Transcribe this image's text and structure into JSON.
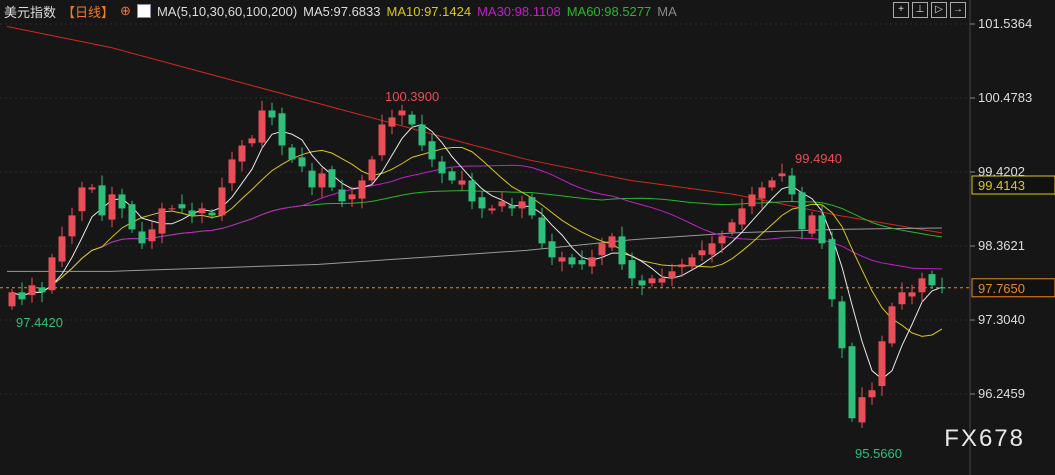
{
  "header": {
    "title": "美元指数",
    "period": "【日线】",
    "ma_label": "MA(5,10,30,60,100,200)",
    "ma5": "MA5:97.6833",
    "ma10": "MA10:97.1424",
    "ma30": "MA30:98.1108",
    "ma60": "MA60:98.5277",
    "ma_more": "MA"
  },
  "toolbar": [
    "crosshair",
    "zoom-in",
    "zoom-out",
    "go-latest"
  ],
  "watermark": "FX678",
  "colors": {
    "up": "#e84e57",
    "down": "#2fbf7a",
    "ma5": "#e8e8e8",
    "ma10": "#d8c81a",
    "ma30": "#c020c8",
    "ma60": "#28b828",
    "ma100": "#9a9a9a",
    "ma200": "#d02a20",
    "bg": "#161616"
  },
  "chart_data": {
    "type": "candlestick",
    "y_ticks": [
      "101.5364",
      "100.4783",
      "99.4202",
      "98.3621",
      "97.3040",
      "96.2459"
    ],
    "ylim": [
      95.4,
      101.7
    ],
    "closes": [
      97.7,
      97.6,
      97.8,
      97.7,
      98.2,
      98.5,
      98.8,
      99.2,
      99.2,
      98.8,
      99.1,
      98.9,
      98.6,
      98.4,
      98.6,
      98.9,
      98.9,
      98.9,
      98.8,
      98.9,
      98.8,
      99.2,
      99.6,
      99.8,
      99.9,
      100.3,
      100.2,
      99.8,
      99.6,
      99.5,
      99.2,
      99.4,
      99.2,
      99.0,
      99.1,
      99.3,
      99.6,
      100.1,
      100.2,
      100.3,
      100.1,
      99.8,
      99.6,
      99.4,
      99.3,
      99.3,
      99.0,
      98.9,
      98.9,
      99.0,
      98.9,
      99.0,
      98.8,
      98.4,
      98.2,
      98.2,
      98.1,
      98.1,
      98.2,
      98.4,
      98.5,
      98.1,
      97.9,
      97.8,
      97.9,
      97.9,
      98.0,
      98.1,
      98.2,
      98.3,
      98.4,
      98.5,
      98.7,
      98.9,
      99.1,
      99.2,
      99.3,
      99.4,
      99.1,
      98.6,
      98.8,
      98.4,
      97.6,
      96.9,
      95.9,
      96.2,
      96.3,
      97.0,
      97.5,
      97.7,
      97.7,
      97.9,
      97.8,
      97.765
    ],
    "ma100": [
      98.0,
      98.0,
      98.05,
      98.1,
      98.2,
      98.3,
      98.45,
      98.55,
      98.6,
      98.62
    ],
    "ma200": [
      101.5,
      101.2,
      100.8,
      100.4,
      100.0,
      99.6,
      99.3,
      99.1,
      98.8,
      98.55
    ],
    "annotations": {
      "high": "100.3900",
      "high2": "99.4940",
      "low": "95.5660",
      "start_low": "97.4420"
    },
    "price_tags": {
      "current": "97.7650",
      "ref": "99.4143"
    }
  }
}
